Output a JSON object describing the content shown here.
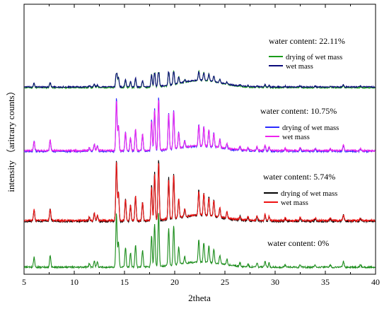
{
  "chart_data": {
    "type": "line",
    "xlabel": "2theta",
    "ylabel": "intensity （aritrary counts）",
    "xlim": [
      5,
      40
    ],
    "x_ticks": [
      "5",
      "10",
      "15",
      "20",
      "25",
      "30",
      "35",
      "40"
    ],
    "grid": false,
    "panels": [
      {
        "annotation": "water content: 22.11%",
        "legend_position": "right",
        "series": [
          {
            "name": "drying of wet mass",
            "color": "#1a9c1a"
          },
          {
            "name": "wet mass",
            "color": "#0a0a7a"
          }
        ]
      },
      {
        "annotation": "water content: 10.75%",
        "legend_position": "right",
        "series": [
          {
            "name": "drying of wet mass",
            "color": "#2a2aff"
          },
          {
            "name": "wet mass",
            "color": "#ee22ee"
          }
        ]
      },
      {
        "annotation": "water content: 5.74%",
        "legend_position": "right",
        "series": [
          {
            "name": "drying of wet mass",
            "color": "#000000"
          },
          {
            "name": "wet mass",
            "color": "#ee1111"
          }
        ]
      },
      {
        "annotation": "water content: 0%",
        "series": [
          {
            "name": "",
            "color": "#1a8c1a"
          }
        ]
      }
    ],
    "peaks": [
      {
        "x": 6.0,
        "h": 0.18
      },
      {
        "x": 7.6,
        "h": 0.2
      },
      {
        "x": 11.5,
        "h": 0.06
      },
      {
        "x": 12.0,
        "h": 0.12
      },
      {
        "x": 12.3,
        "h": 0.09
      },
      {
        "x": 14.2,
        "h": 0.95
      },
      {
        "x": 14.4,
        "h": 0.45
      },
      {
        "x": 15.1,
        "h": 0.35
      },
      {
        "x": 15.6,
        "h": 0.25
      },
      {
        "x": 16.1,
        "h": 0.4
      },
      {
        "x": 16.8,
        "h": 0.3
      },
      {
        "x": 17.7,
        "h": 0.55
      },
      {
        "x": 18.0,
        "h": 0.75
      },
      {
        "x": 18.4,
        "h": 0.95
      },
      {
        "x": 19.4,
        "h": 0.65
      },
      {
        "x": 19.9,
        "h": 0.7
      },
      {
        "x": 20.4,
        "h": 0.3
      },
      {
        "x": 21.0,
        "h": 0.12
      },
      {
        "x": 22.4,
        "h": 0.4
      },
      {
        "x": 22.9,
        "h": 0.35
      },
      {
        "x": 23.4,
        "h": 0.3
      },
      {
        "x": 23.9,
        "h": 0.25
      },
      {
        "x": 24.5,
        "h": 0.15
      },
      {
        "x": 25.2,
        "h": 0.1
      },
      {
        "x": 26.5,
        "h": 0.06
      },
      {
        "x": 27.3,
        "h": 0.05
      },
      {
        "x": 28.2,
        "h": 0.07
      },
      {
        "x": 29.0,
        "h": 0.1
      },
      {
        "x": 29.4,
        "h": 0.07
      },
      {
        "x": 31.0,
        "h": 0.04
      },
      {
        "x": 32.5,
        "h": 0.05
      },
      {
        "x": 34.0,
        "h": 0.04
      },
      {
        "x": 35.5,
        "h": 0.04
      },
      {
        "x": 36.8,
        "h": 0.1
      },
      {
        "x": 38.5,
        "h": 0.04
      }
    ]
  }
}
